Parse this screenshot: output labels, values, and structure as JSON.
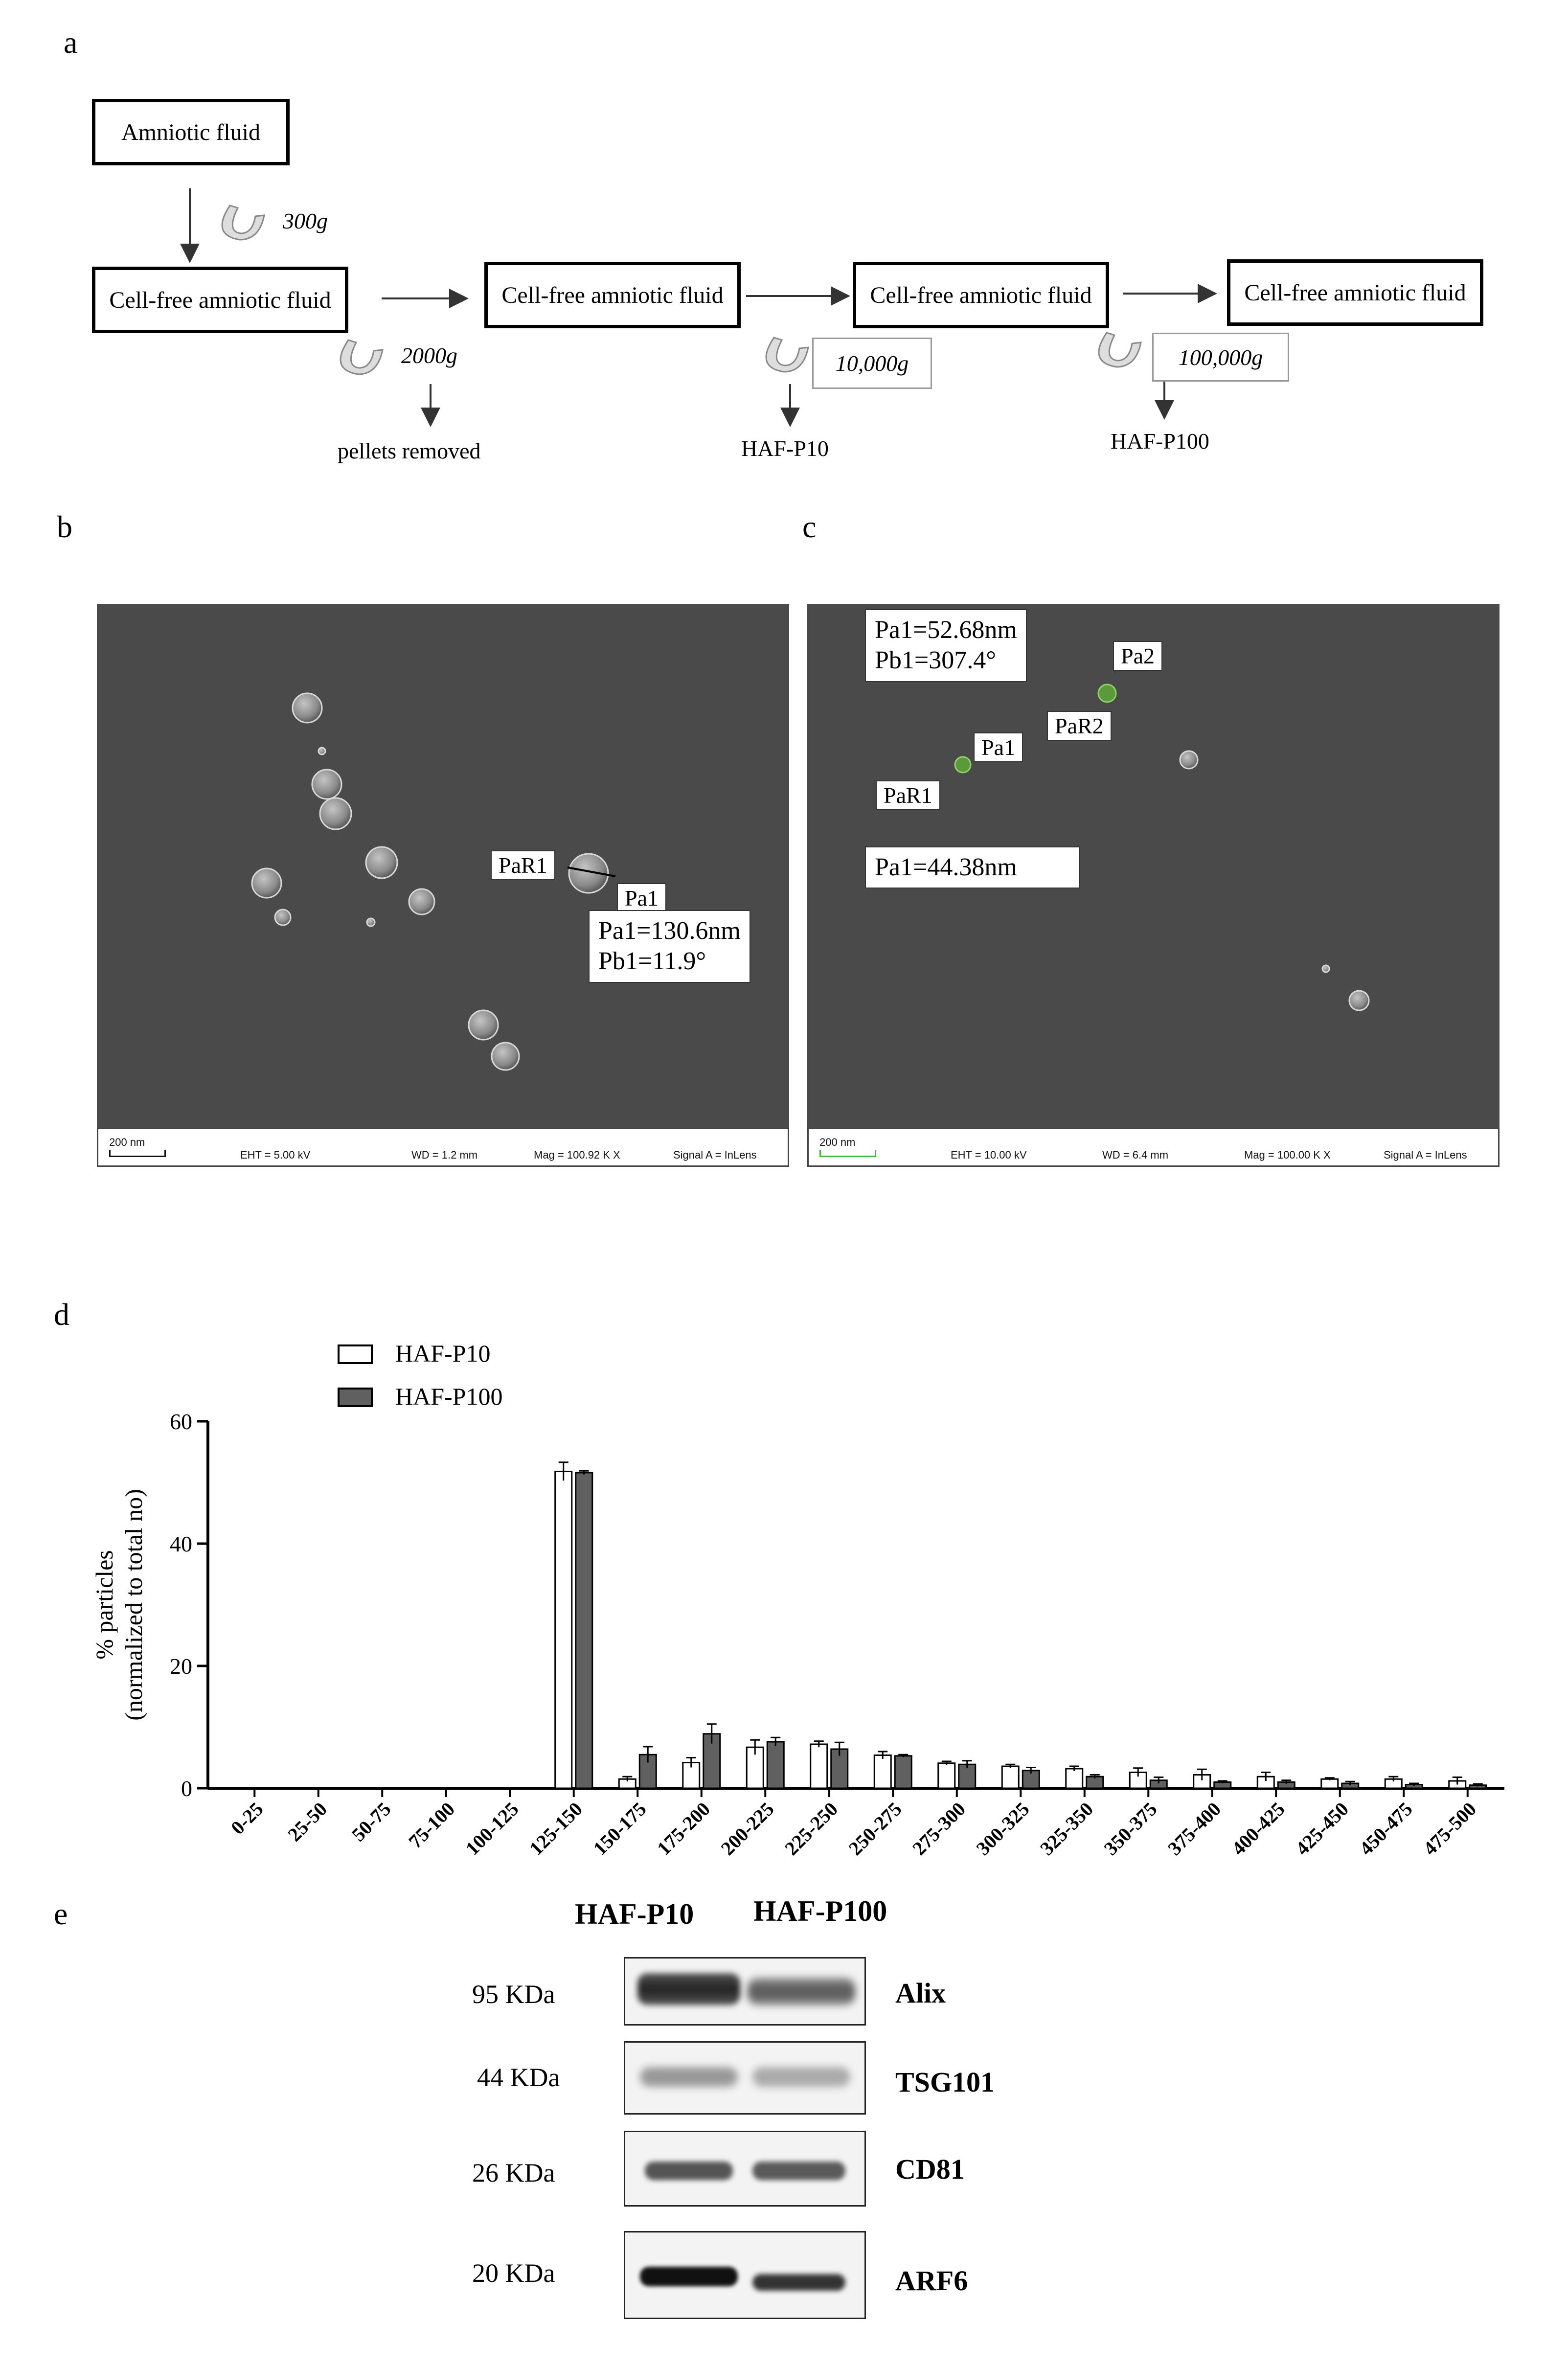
{
  "panels": {
    "a": "a",
    "b": "b",
    "c": "c",
    "d": "d",
    "e": "e"
  },
  "flow": {
    "start": "Amniotic fluid",
    "boxes": [
      "Cell-free amniotic fluid",
      "Cell-free amniotic fluid",
      "Cell-free amniotic fluid",
      "Cell-free amniotic fluid"
    ],
    "speeds": [
      "300g",
      "2000g",
      "10,000g",
      "100,000g"
    ],
    "outputs": [
      "pellets removed",
      "HAF-P10",
      "HAF-P100"
    ]
  },
  "sem_b": {
    "labels": {
      "par1": "PaR1",
      "pa1": "Pa1"
    },
    "measure": [
      "Pa1=130.6nm",
      "Pb1=11.9°"
    ],
    "footer": {
      "scale": "200 nm",
      "eht": "EHT =  5.00 kV",
      "wd": "WD =  1.2 mm",
      "mag": "Mag = 100.92 K X",
      "signal": "Signal A = InLens"
    }
  },
  "sem_c": {
    "labels": {
      "pa2": "Pa2",
      "par2": "PaR2",
      "pa1": "Pa1",
      "par1": "PaR1"
    },
    "measure_top": [
      "Pa1=52.68nm",
      "Pb1=307.4°"
    ],
    "measure_bottom": "Pa1=44.38nm",
    "footer": {
      "scale": "200 nm",
      "eht": "EHT = 10.00 kV",
      "wd": "WD =  6.4 mm",
      "mag": "Mag = 100.00 K X",
      "signal": "Signal A = InLens"
    }
  },
  "chart_data": {
    "type": "bar",
    "ylabel": "% particles\n(normalized to total no)",
    "ylim": [
      0,
      60
    ],
    "yticks": [
      0,
      20,
      40,
      60
    ],
    "legend_position": "top-left",
    "categories": [
      "0-25",
      "25-50",
      "50-75",
      "75-100",
      "100-125",
      "125-150",
      "150-175",
      "175-200",
      "200-225",
      "225-250",
      "250-275",
      "275-300",
      "300-325",
      "325-350",
      "350-375",
      "375-400",
      "400-425",
      "425-450",
      "450-475",
      "475-500"
    ],
    "series": [
      {
        "name": "HAF-P10",
        "color": "#ffffff",
        "values": [
          0,
          0,
          0,
          0,
          0,
          51.8,
          1.5,
          4.2,
          6.7,
          7.2,
          5.4,
          4.1,
          3.6,
          3.2,
          2.6,
          2.2,
          1.9,
          1.5,
          1.5,
          1.2
        ],
        "errors": [
          0,
          0,
          0,
          0,
          0,
          1.5,
          0.4,
          0.8,
          1.2,
          0.5,
          0.6,
          0.3,
          0.3,
          0.4,
          0.7,
          0.9,
          0.7,
          0.2,
          0.4,
          0.6
        ]
      },
      {
        "name": "HAF-P100",
        "color": "#606060",
        "values": [
          0,
          0,
          0,
          0,
          0,
          51.6,
          5.5,
          8.9,
          7.6,
          6.4,
          5.3,
          3.9,
          2.9,
          1.9,
          1.3,
          1.0,
          1.0,
          0.8,
          0.6,
          0.5
        ],
        "errors": [
          0,
          0,
          0,
          0,
          0,
          0.3,
          1.3,
          1.6,
          0.7,
          1.1,
          0.2,
          0.6,
          0.5,
          0.3,
          0.5,
          0.2,
          0.3,
          0.3,
          0.2,
          0.2
        ]
      }
    ]
  },
  "blot": {
    "lanes": [
      "HAF-P10",
      "HAF-P100"
    ],
    "rows": [
      {
        "kda": "95 KDa",
        "name": "Alix"
      },
      {
        "kda": "44 KDa",
        "name": "TSG101"
      },
      {
        "kda": "26 KDa",
        "name": "CD81"
      },
      {
        "kda": "20 KDa",
        "name": "ARF6"
      }
    ]
  }
}
